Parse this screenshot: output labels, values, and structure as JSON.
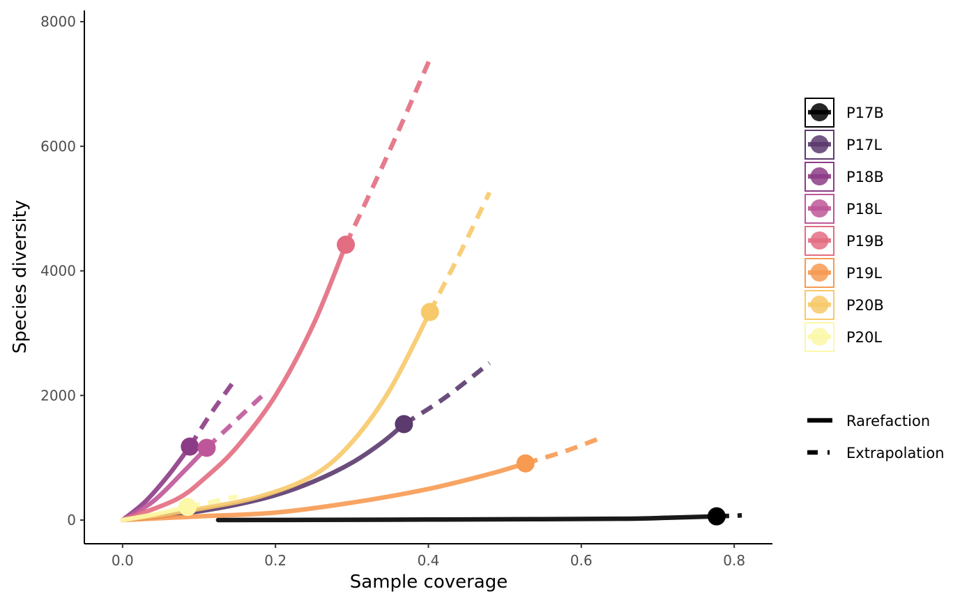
{
  "chart_data": {
    "type": "line",
    "xlabel": "Sample coverage",
    "ylabel": "Species diversity",
    "xlim": [
      -0.05,
      0.85
    ],
    "ylim": [
      -380,
      8180
    ],
    "xticks": [
      0.0,
      0.2,
      0.4,
      0.6,
      0.8
    ],
    "xtick_labels": [
      "0.0",
      "0.2",
      "0.4",
      "0.6",
      "0.8"
    ],
    "yticks": [
      0,
      2000,
      4000,
      6000,
      8000
    ],
    "ytick_labels": [
      "0",
      "2000",
      "4000",
      "6000",
      "8000"
    ],
    "grid": false,
    "legend_position": "right",
    "series": [
      {
        "name": "P17B",
        "color": "#000000",
        "rarefaction": [
          [
            0.125,
            0
          ],
          [
            0.25,
            3
          ],
          [
            0.4,
            8
          ],
          [
            0.55,
            15
          ],
          [
            0.66,
            22
          ],
          [
            0.72,
            40
          ],
          [
            0.777,
            60
          ]
        ],
        "observed": [
          0.777,
          60
        ],
        "extrapolation": [
          [
            0.777,
            60
          ],
          [
            0.81,
            75
          ]
        ]
      },
      {
        "name": "P17L",
        "color": "#5B3A6E",
        "rarefaction": [
          [
            0.0,
            0
          ],
          [
            0.05,
            60
          ],
          [
            0.1,
            140
          ],
          [
            0.15,
            250
          ],
          [
            0.2,
            400
          ],
          [
            0.25,
            620
          ],
          [
            0.3,
            920
          ],
          [
            0.34,
            1250
          ],
          [
            0.368,
            1540
          ]
        ],
        "observed": [
          0.368,
          1540
        ],
        "extrapolation": [
          [
            0.368,
            1540
          ],
          [
            0.42,
            1950
          ],
          [
            0.48,
            2520
          ]
        ]
      },
      {
        "name": "P18B",
        "color": "#8C3C86",
        "rarefaction": [
          [
            0.0,
            0
          ],
          [
            0.03,
            300
          ],
          [
            0.06,
            720
          ],
          [
            0.088,
            1180
          ]
        ],
        "observed": [
          0.088,
          1180
        ],
        "extrapolation": [
          [
            0.088,
            1180
          ],
          [
            0.115,
            1700
          ],
          [
            0.148,
            2270
          ]
        ]
      },
      {
        "name": "P18L",
        "color": "#BE5799",
        "rarefaction": [
          [
            0.0,
            0
          ],
          [
            0.04,
            300
          ],
          [
            0.08,
            780
          ],
          [
            0.11,
            1160
          ]
        ],
        "observed": [
          0.11,
          1160
        ],
        "extrapolation": [
          [
            0.11,
            1160
          ],
          [
            0.15,
            1620
          ],
          [
            0.19,
            2080
          ]
        ]
      },
      {
        "name": "P19B",
        "color": "#E36D81",
        "rarefaction": [
          [
            0.0,
            0
          ],
          [
            0.07,
            330
          ],
          [
            0.11,
            700
          ],
          [
            0.15,
            1180
          ],
          [
            0.2,
            2000
          ],
          [
            0.25,
            3150
          ],
          [
            0.292,
            4420
          ]
        ],
        "observed": [
          0.292,
          4420
        ],
        "extrapolation": [
          [
            0.292,
            4420
          ],
          [
            0.35,
            5950
          ],
          [
            0.403,
            7430
          ]
        ]
      },
      {
        "name": "P19L",
        "color": "#F79A52",
        "rarefaction": [
          [
            0.0,
            0
          ],
          [
            0.1,
            60
          ],
          [
            0.2,
            120
          ],
          [
            0.3,
            280
          ],
          [
            0.4,
            500
          ],
          [
            0.48,
            740
          ],
          [
            0.527,
            910
          ]
        ],
        "observed": [
          0.527,
          910
        ],
        "extrapolation": [
          [
            0.527,
            910
          ],
          [
            0.58,
            1110
          ],
          [
            0.63,
            1340
          ]
        ]
      },
      {
        "name": "P20B",
        "color": "#F7C96A",
        "rarefaction": [
          [
            0.0,
            0
          ],
          [
            0.1,
            180
          ],
          [
            0.18,
            380
          ],
          [
            0.25,
            720
          ],
          [
            0.3,
            1250
          ],
          [
            0.35,
            2100
          ],
          [
            0.402,
            3340
          ]
        ],
        "observed": [
          0.402,
          3340
        ],
        "extrapolation": [
          [
            0.402,
            3340
          ],
          [
            0.44,
            4250
          ],
          [
            0.48,
            5260
          ]
        ]
      },
      {
        "name": "P20L",
        "color": "#FCF8A8",
        "rarefaction": [
          [
            0.0,
            0
          ],
          [
            0.04,
            90
          ],
          [
            0.085,
            210
          ]
        ],
        "observed": [
          0.085,
          210
        ],
        "extrapolation": [
          [
            0.085,
            210
          ],
          [
            0.12,
            300
          ],
          [
            0.15,
            380
          ]
        ]
      }
    ],
    "line_type_legend": [
      "Rarefaction",
      "Extrapolation"
    ]
  }
}
